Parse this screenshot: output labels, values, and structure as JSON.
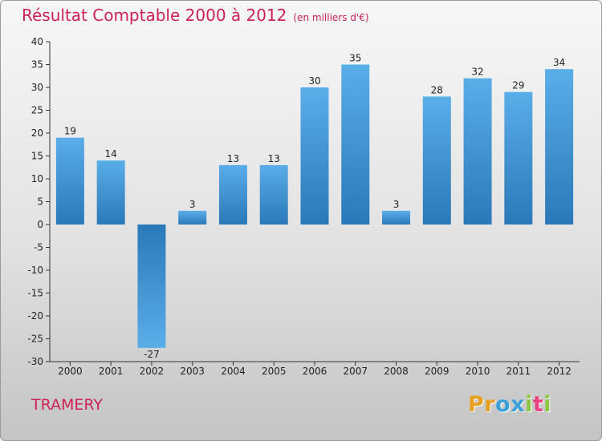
{
  "title": "Résultat Comptable 2000 à 2012",
  "unit": "(en milliers d'€)",
  "commune": "TRAMERY",
  "logo": [
    "P",
    "r",
    "o",
    "x",
    "i",
    "t",
    "i"
  ],
  "colors": {
    "title": "#cc2255",
    "bar_top": "#5aaee8",
    "bar_bottom": "#2a78b8",
    "logo": [
      "#e8a020",
      "#e8a020",
      "#3aa0d8",
      "#3aa0d8",
      "#8cc63f",
      "#e84080",
      "#8cc63f"
    ]
  },
  "chart_data": {
    "type": "bar",
    "title": "Résultat Comptable 2000 à 2012",
    "categories": [
      "2000",
      "2001",
      "2002",
      "2003",
      "2004",
      "2005",
      "2006",
      "2007",
      "2008",
      "2009",
      "2010",
      "2011",
      "2012"
    ],
    "values": [
      19,
      14,
      -27,
      3,
      13,
      13,
      30,
      35,
      3,
      28,
      32,
      29,
      34
    ],
    "ylim": [
      -30,
      40
    ],
    "yticks": [
      40,
      35,
      30,
      25,
      20,
      15,
      10,
      5,
      0,
      -5,
      -10,
      -15,
      -20,
      -25,
      -30
    ],
    "xlabel": "",
    "ylabel": "",
    "grid": false
  }
}
